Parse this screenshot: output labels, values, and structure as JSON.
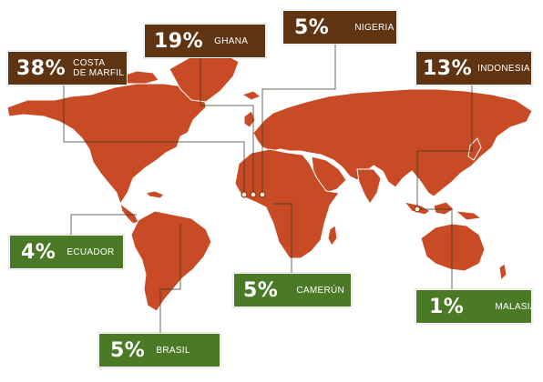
{
  "colors": {
    "land": "#c84b25",
    "producer_label_large": "#5e3412",
    "producer_label_small": "#4b7a26"
  },
  "labels": {
    "costa_marfil": {
      "percent": "38%",
      "name_line1": "COSTA",
      "name_line2": "DE MARFIL"
    },
    "ghana": {
      "percent": "19%",
      "name": "GHANA"
    },
    "nigeria": {
      "percent": "5%",
      "name": "NIGERIA"
    },
    "indonesia": {
      "percent": "13%",
      "name": "INDONESIA"
    },
    "ecuador": {
      "percent": "4%",
      "name": "ECUADOR"
    },
    "camerun": {
      "percent": "5%",
      "name": "CAMERÚN"
    },
    "malasia": {
      "percent": "1%",
      "name": "MALASIA"
    },
    "brasil": {
      "percent": "5%",
      "name": "BRASIL"
    }
  }
}
